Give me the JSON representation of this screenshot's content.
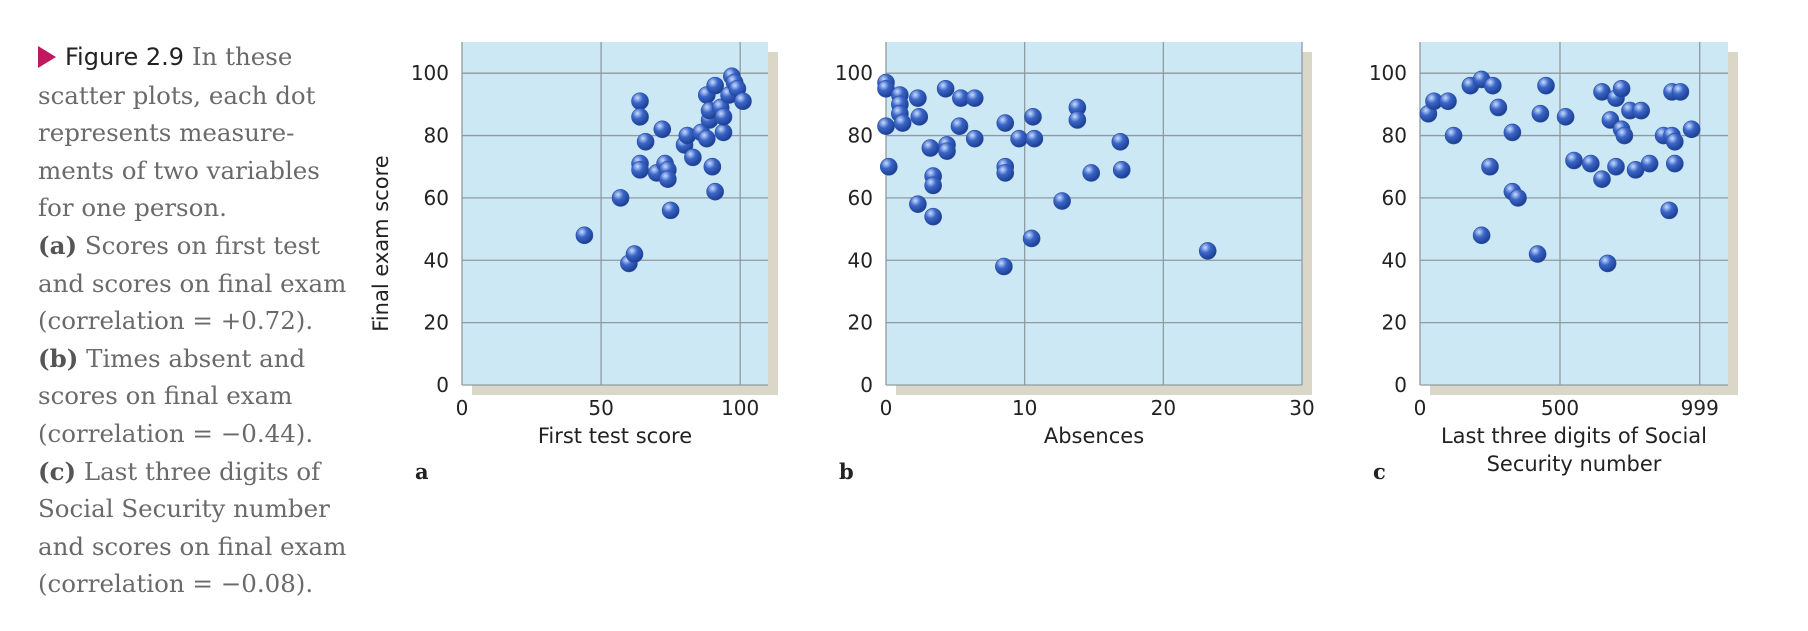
{
  "caption": {
    "figure_label": "Figure 2.9",
    "intro": "In these scatter plots, each dot represents measure­ments of two variables for one person.",
    "parts": [
      {
        "label": "(a)",
        "text": "Scores on first test and scores on final exam (correlation = +0.72)."
      },
      {
        "label": "(b)",
        "text": "Times absent and scores on final exam (correlation = −0.44)."
      },
      {
        "label": "(c)",
        "text": "Last three digits of Social Security number and scores on final exam (correlation = −0.08)."
      }
    ]
  },
  "colors": {
    "plot_background": "#cce8f4",
    "shadow": "#d5d0be",
    "grid": "#8f9aa0",
    "dot": "#3a66c8",
    "dot_highlight": "#c9dcff",
    "figure_marker": "#c0195f"
  },
  "chart_data": [
    {
      "type": "scatter",
      "panel_label": "a",
      "xlabel": "First test score",
      "ylabel": "Final exam score",
      "xlim": [
        0,
        110
      ],
      "ylim": [
        0,
        110
      ],
      "xticks": [
        0,
        50,
        100
      ],
      "yticks": [
        0,
        20,
        40,
        60,
        80,
        100
      ],
      "grid": true,
      "points": [
        [
          44,
          48
        ],
        [
          57,
          60
        ],
        [
          60,
          39
        ],
        [
          62,
          42
        ],
        [
          64,
          91
        ],
        [
          64,
          86
        ],
        [
          64,
          71
        ],
        [
          64,
          69
        ],
        [
          66,
          78
        ],
        [
          70,
          68
        ],
        [
          72,
          82
        ],
        [
          73,
          71
        ],
        [
          74,
          69
        ],
        [
          74,
          66
        ],
        [
          75,
          56
        ],
        [
          80,
          77
        ],
        [
          81,
          80
        ],
        [
          83,
          73
        ],
        [
          86,
          81
        ],
        [
          88,
          79
        ],
        [
          88,
          93
        ],
        [
          89,
          85
        ],
        [
          89,
          88
        ],
        [
          90,
          70
        ],
        [
          91,
          96
        ],
        [
          91,
          62
        ],
        [
          93,
          89
        ],
        [
          94,
          81
        ],
        [
          94,
          86
        ],
        [
          96,
          93
        ],
        [
          97,
          99
        ],
        [
          98,
          97
        ],
        [
          99,
          95
        ],
        [
          101,
          91
        ]
      ]
    },
    {
      "type": "scatter",
      "panel_label": "b",
      "xlabel": "Absences",
      "ylabel": "",
      "xlim": [
        0,
        30
      ],
      "ylim": [
        0,
        110
      ],
      "xticks": [
        0,
        10,
        20,
        30
      ],
      "yticks": [
        0,
        20,
        40,
        60,
        80,
        100
      ],
      "grid": true,
      "points": [
        [
          0,
          97
        ],
        [
          0,
          95
        ],
        [
          0,
          83
        ],
        [
          0.2,
          70
        ],
        [
          1,
          93
        ],
        [
          1,
          90
        ],
        [
          1,
          87
        ],
        [
          1.2,
          84
        ],
        [
          2.3,
          92
        ],
        [
          2.4,
          86
        ],
        [
          2.3,
          58
        ],
        [
          3.2,
          76
        ],
        [
          3.4,
          67
        ],
        [
          3.4,
          64
        ],
        [
          3.4,
          54
        ],
        [
          4.3,
          95
        ],
        [
          4.4,
          77
        ],
        [
          4.4,
          75
        ],
        [
          5.4,
          92
        ],
        [
          5.3,
          83
        ],
        [
          6.4,
          92
        ],
        [
          6.4,
          79
        ],
        [
          8.6,
          84
        ],
        [
          8.6,
          70
        ],
        [
          8.6,
          68
        ],
        [
          8.5,
          38
        ],
        [
          9.6,
          79
        ],
        [
          10.6,
          86
        ],
        [
          10.7,
          79
        ],
        [
          10.5,
          47
        ],
        [
          12.7,
          59
        ],
        [
          13.8,
          89
        ],
        [
          13.8,
          85
        ],
        [
          14.8,
          68
        ],
        [
          16.9,
          78
        ],
        [
          17,
          69
        ],
        [
          23.2,
          43
        ]
      ]
    },
    {
      "type": "scatter",
      "panel_label": "c",
      "xlabel": "Last three digits of Social Security number",
      "ylabel": "",
      "xlim": [
        0,
        1100
      ],
      "ylim": [
        0,
        110
      ],
      "xticks": [
        0,
        500,
        999
      ],
      "yticks": [
        0,
        20,
        40,
        60,
        80,
        100
      ],
      "grid": true,
      "points": [
        [
          30,
          87
        ],
        [
          50,
          91
        ],
        [
          100,
          91
        ],
        [
          120,
          80
        ],
        [
          180,
          96
        ],
        [
          220,
          98
        ],
        [
          260,
          96
        ],
        [
          280,
          89
        ],
        [
          220,
          48
        ],
        [
          250,
          70
        ],
        [
          330,
          62
        ],
        [
          330,
          81
        ],
        [
          350,
          60
        ],
        [
          420,
          42
        ],
        [
          430,
          87
        ],
        [
          450,
          96
        ],
        [
          520,
          86
        ],
        [
          550,
          72
        ],
        [
          610,
          71
        ],
        [
          650,
          94
        ],
        [
          650,
          66
        ],
        [
          680,
          85
        ],
        [
          700,
          92
        ],
        [
          700,
          70
        ],
        [
          720,
          95
        ],
        [
          720,
          82
        ],
        [
          730,
          80
        ],
        [
          750,
          88
        ],
        [
          790,
          88
        ],
        [
          770,
          69
        ],
        [
          820,
          71
        ],
        [
          870,
          80
        ],
        [
          900,
          80
        ],
        [
          910,
          78
        ],
        [
          900,
          94
        ],
        [
          930,
          94
        ],
        [
          910,
          71
        ],
        [
          890,
          56
        ],
        [
          970,
          82
        ],
        [
          670,
          39
        ]
      ]
    }
  ]
}
